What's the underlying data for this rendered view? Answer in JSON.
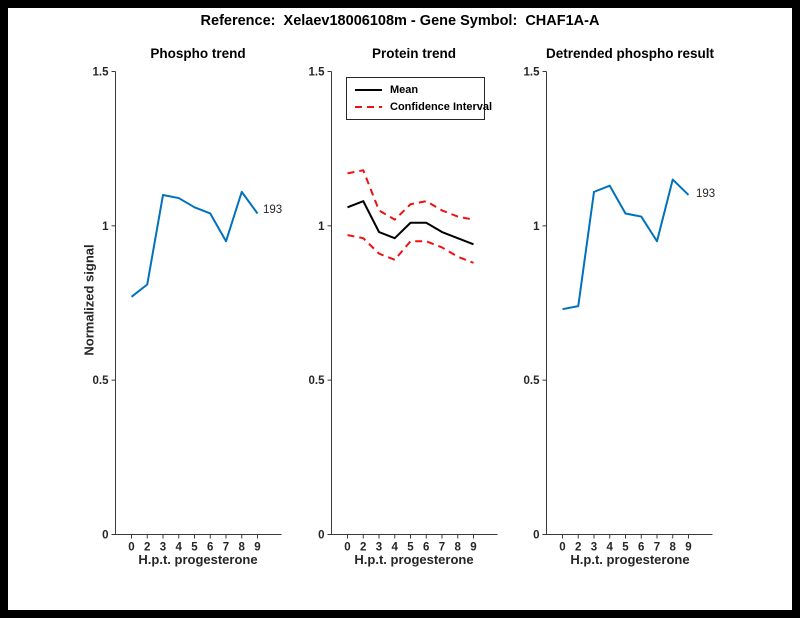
{
  "figure": {
    "title": "Reference:  Xelaev18006108m - Gene Symbol:  CHAF1A-A"
  },
  "axes": {
    "xlabel": "H.p.t. progesterone",
    "ylabel": "Normalized signal",
    "x_tick_labels": [
      "0",
      "2",
      "3",
      "4",
      "5",
      "6",
      "7",
      "8",
      "9"
    ],
    "y_tick_labels": [
      "0",
      "0.5",
      "1",
      "1.5"
    ],
    "y_tick_values": [
      0,
      0.5,
      1,
      1.5
    ],
    "ylim": [
      0,
      1.5
    ]
  },
  "legend": {
    "items": [
      {
        "label": "Mean",
        "color": "#000000",
        "style": "solid"
      },
      {
        "label": "Confidence Interval",
        "color": "#ee1111",
        "style": "dashed"
      }
    ]
  },
  "colors": {
    "signal_blue": "#0072bd",
    "mean_black": "#000000",
    "ci_red": "#ee1111",
    "axis": "#3a3a3a",
    "tick_text": "#262626"
  },
  "chart_data": [
    {
      "type": "line",
      "title": "Phospho trend",
      "xlabel": "H.p.t. progesterone",
      "ylabel": "Normalized signal",
      "x": [
        "0",
        "2",
        "3",
        "4",
        "5",
        "6",
        "7",
        "8",
        "9"
      ],
      "ylim": [
        0,
        1.5
      ],
      "grid": false,
      "series": [
        {
          "name": "phospho-signal",
          "color": "#0072bd",
          "style": "solid",
          "values": [
            0.77,
            0.81,
            1.1,
            1.09,
            1.06,
            1.04,
            0.95,
            1.11,
            1.04
          ]
        }
      ],
      "annotation": "193"
    },
    {
      "type": "line",
      "title": "Protein trend",
      "xlabel": "H.p.t. progesterone",
      "x": [
        "0",
        "2",
        "3",
        "4",
        "5",
        "6",
        "7",
        "8",
        "9"
      ],
      "ylim": [
        0,
        1.5
      ],
      "grid": false,
      "legend_position": "northwest",
      "series": [
        {
          "name": "mean",
          "color": "#000000",
          "style": "solid",
          "values": [
            1.06,
            1.08,
            0.98,
            0.96,
            1.01,
            1.01,
            0.98,
            0.96,
            0.94
          ]
        },
        {
          "name": "ci-upper",
          "color": "#ee1111",
          "style": "dashed",
          "values": [
            1.17,
            1.18,
            1.05,
            1.02,
            1.07,
            1.08,
            1.05,
            1.03,
            1.02
          ]
        },
        {
          "name": "ci-lower",
          "color": "#ee1111",
          "style": "dashed",
          "values": [
            0.97,
            0.96,
            0.91,
            0.89,
            0.95,
            0.95,
            0.93,
            0.9,
            0.88
          ]
        }
      ]
    },
    {
      "type": "line",
      "title": "Detrended phospho result",
      "xlabel": "H.p.t. progesterone",
      "x": [
        "0",
        "2",
        "3",
        "4",
        "5",
        "6",
        "7",
        "8",
        "9"
      ],
      "ylim": [
        0,
        1.5
      ],
      "grid": false,
      "series": [
        {
          "name": "detrended-phospho-signal",
          "color": "#0072bd",
          "style": "solid",
          "values": [
            0.73,
            0.74,
            1.11,
            1.13,
            1.04,
            1.03,
            0.95,
            1.15,
            1.1
          ]
        }
      ],
      "annotation": "193"
    }
  ]
}
